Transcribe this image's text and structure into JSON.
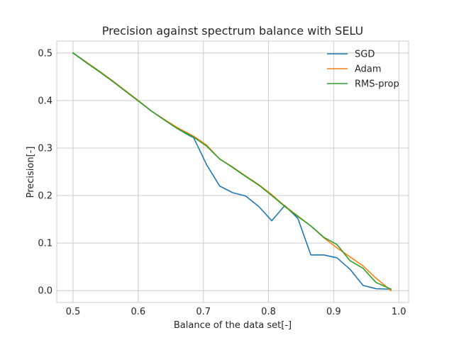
{
  "chart_data": {
    "type": "line",
    "title": "Precision against spectrum balance with SELU",
    "xlabel": "Balance of the data set[-]",
    "ylabel": "Precision[-]",
    "xlim": [
      0.475,
      1.015
    ],
    "ylim": [
      -0.025,
      0.525
    ],
    "xticks": [
      0.5,
      0.6,
      0.7,
      0.8,
      0.9,
      1.0
    ],
    "xtick_labels": [
      "0.5",
      "0.6",
      "0.7",
      "0.8",
      "0.9",
      "1.0"
    ],
    "yticks": [
      0.0,
      0.1,
      0.2,
      0.3,
      0.4,
      0.5
    ],
    "ytick_labels": [
      "0.0",
      "0.1",
      "0.2",
      "0.3",
      "0.4",
      "0.5"
    ],
    "grid": true,
    "legend_position": "top-right",
    "series": [
      {
        "name": "SGD",
        "color": "#1f77b4",
        "x": [
          0.5,
          0.52,
          0.54,
          0.56,
          0.58,
          0.6,
          0.62,
          0.64,
          0.66,
          0.68,
          0.685,
          0.705,
          0.725,
          0.745,
          0.765,
          0.785,
          0.805,
          0.825,
          0.845,
          0.865,
          0.885,
          0.905,
          0.925,
          0.945,
          0.965,
          0.985
        ],
        "y": [
          0.5,
          0.481,
          0.462,
          0.442,
          0.421,
          0.4,
          0.378,
          0.36,
          0.341,
          0.325,
          0.322,
          0.265,
          0.22,
          0.206,
          0.199,
          0.177,
          0.147,
          0.179,
          0.152,
          0.075,
          0.075,
          0.069,
          0.045,
          0.011,
          0.004,
          0.003
        ]
      },
      {
        "name": "Adam",
        "color": "#ff7f0e",
        "x": [
          0.5,
          0.52,
          0.54,
          0.56,
          0.58,
          0.6,
          0.62,
          0.64,
          0.66,
          0.685,
          0.705,
          0.725,
          0.745,
          0.765,
          0.785,
          0.805,
          0.825,
          0.845,
          0.865,
          0.885,
          0.905,
          0.925,
          0.945,
          0.965,
          0.988
        ],
        "y": [
          0.5,
          0.481,
          0.462,
          0.442,
          0.421,
          0.4,
          0.378,
          0.36,
          0.343,
          0.325,
          0.306,
          0.277,
          0.26,
          0.241,
          0.223,
          0.202,
          0.178,
          0.157,
          0.136,
          0.111,
          0.09,
          0.071,
          0.052,
          0.026,
          0.0
        ]
      },
      {
        "name": "RMS-prop",
        "color": "#2ca02c",
        "x": [
          0.5,
          0.52,
          0.54,
          0.56,
          0.58,
          0.6,
          0.62,
          0.64,
          0.66,
          0.685,
          0.705,
          0.725,
          0.745,
          0.765,
          0.785,
          0.805,
          0.825,
          0.845,
          0.865,
          0.885,
          0.905,
          0.925,
          0.945,
          0.965,
          0.988
        ],
        "y": [
          0.5,
          0.48,
          0.461,
          0.441,
          0.42,
          0.399,
          0.378,
          0.359,
          0.341,
          0.323,
          0.304,
          0.277,
          0.259,
          0.24,
          0.222,
          0.2,
          0.177,
          0.156,
          0.136,
          0.112,
          0.097,
          0.063,
          0.047,
          0.017,
          0.003
        ]
      }
    ]
  }
}
